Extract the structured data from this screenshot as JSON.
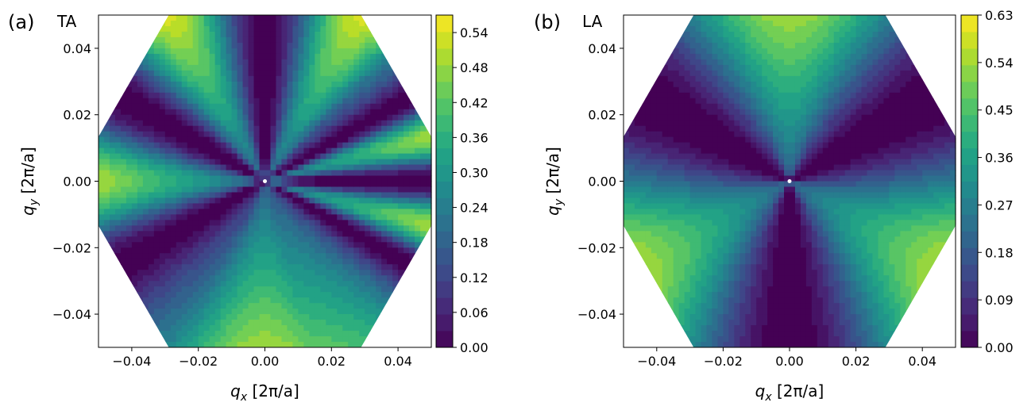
{
  "chart_data": [
    {
      "type": "heatmap",
      "panel_label": "(a)",
      "title": "TA",
      "xlabel_var": "q",
      "xlabel_sub": "x",
      "xlabel_unit": "[2π/a]",
      "ylabel_var": "q",
      "ylabel_sub": "y",
      "ylabel_unit": "[2π/a]",
      "xlim": [
        -0.05,
        0.05
      ],
      "ylim": [
        -0.05,
        0.05
      ],
      "xticks": [
        "−0.04",
        "−0.02",
        "0.00",
        "0.02",
        "0.04"
      ],
      "xtick_values": [
        -0.04,
        -0.02,
        0.0,
        0.02,
        0.04
      ],
      "yticks": [
        "−0.04",
        "−0.02",
        "0.00",
        "0.02",
        "0.04"
      ],
      "ytick_values": [
        -0.04,
        -0.02,
        0.0,
        0.02,
        0.04
      ],
      "colorbar_ticks": [
        "0.00",
        "0.06",
        "0.12",
        "0.18",
        "0.24",
        "0.30",
        "0.36",
        "0.42",
        "0.48",
        "0.54"
      ],
      "colorbar_values": [
        0.0,
        0.06,
        0.12,
        0.18,
        0.24,
        0.3,
        0.36,
        0.42,
        0.48,
        0.54
      ],
      "colorbar_range": [
        0.0,
        0.57
      ],
      "zero_lines_deg": [
        0,
        90,
        -30,
        30,
        150,
        210
      ],
      "colormap": "viridis",
      "marker": [
        0.0,
        0.0
      ]
    },
    {
      "type": "heatmap",
      "panel_label": "(b)",
      "title": "LA",
      "xlabel_var": "q",
      "xlabel_sub": "x",
      "xlabel_unit": "[2π/a]",
      "ylabel_var": "q",
      "ylabel_sub": "y",
      "ylabel_unit": "[2π/a]",
      "xlim": [
        -0.05,
        0.05
      ],
      "ylim": [
        -0.05,
        0.05
      ],
      "xticks": [
        "−0.04",
        "−0.02",
        "0.00",
        "0.02",
        "0.04"
      ],
      "xtick_values": [
        -0.04,
        -0.02,
        0.0,
        0.02,
        0.04
      ],
      "yticks": [
        "−0.04",
        "−0.02",
        "0.00",
        "0.02",
        "0.04"
      ],
      "ytick_values": [
        -0.04,
        -0.02,
        0.0,
        0.02,
        0.04
      ],
      "colorbar_ticks": [
        "0.00",
        "0.09",
        "0.18",
        "0.27",
        "0.36",
        "0.45",
        "0.54",
        "0.63"
      ],
      "colorbar_values": [
        0.0,
        0.09,
        0.18,
        0.27,
        0.36,
        0.45,
        0.54,
        0.63
      ],
      "colorbar_range": [
        0.0,
        0.63
      ],
      "zero_lines_deg": [
        30,
        150,
        270
      ],
      "colormap": "viridis",
      "marker": [
        0.0,
        0.0
      ]
    }
  ]
}
